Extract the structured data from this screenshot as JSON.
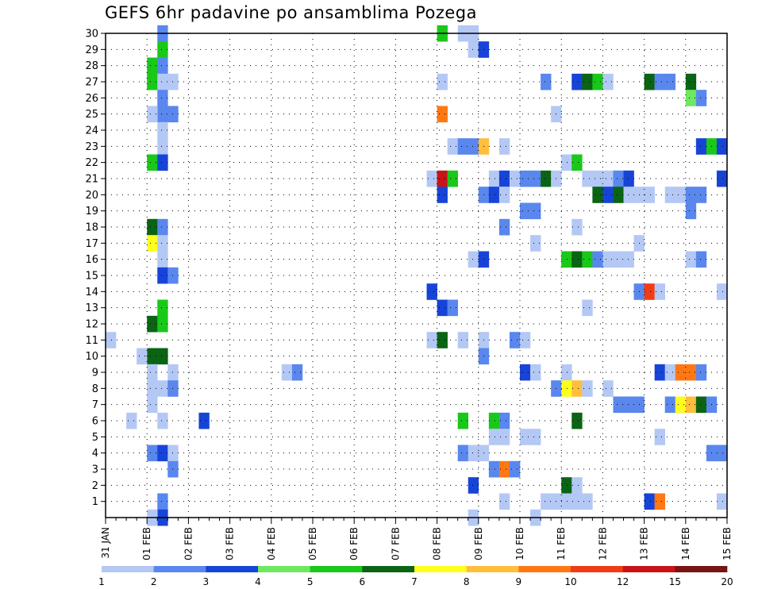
{
  "chart_data": {
    "type": "heatmap",
    "title": "GEFS 6hr padavine po ansamblima Pozega",
    "xlabel": "",
    "ylabel": "",
    "x_ticks": [
      "31 JAN",
      "01 FEB",
      "02 FEB",
      "03 FEB",
      "04 FEB",
      "05 FEB",
      "06 FEB",
      "07 FEB",
      "08 FEB",
      "09 FEB",
      "10 FEB",
      "11 FEB",
      "12 FEB",
      "13 FEB",
      "14 FEB",
      "15 FEB"
    ],
    "y_ticks": [
      1,
      2,
      3,
      4,
      5,
      6,
      7,
      8,
      9,
      10,
      11,
      12,
      13,
      14,
      15,
      16,
      17,
      18,
      19,
      20,
      21,
      22,
      23,
      24,
      25,
      26,
      27,
      28,
      29,
      30
    ],
    "x_range_days": [
      0,
      15
    ],
    "steps_per_day": 4,
    "y_range": [
      0,
      30
    ],
    "grid": true,
    "colorbar": {
      "levels": [
        "1",
        "2",
        "3",
        "4",
        "5",
        "6",
        "7",
        "8",
        "9",
        "10",
        "12",
        "15",
        "20"
      ],
      "colors": [
        "#b4c8f5",
        "#5a87ee",
        "#1744d8",
        "#6ee860",
        "#19c819",
        "#0a6414",
        "#ffff1e",
        "#ffbe3c",
        "#ff7814",
        "#f03c14",
        "#c81414",
        "#781414"
      ]
    },
    "cells": [
      [
        5,
        30,
        1
      ],
      [
        5,
        29,
        4
      ],
      [
        5,
        28,
        1
      ],
      [
        4,
        28,
        4
      ],
      [
        4,
        27,
        4
      ],
      [
        5,
        27,
        0
      ],
      [
        6,
        27,
        0
      ],
      [
        5,
        26,
        1
      ],
      [
        5,
        25,
        1
      ],
      [
        4,
        25,
        0
      ],
      [
        6,
        25,
        1
      ],
      [
        5,
        24,
        0
      ],
      [
        5,
        23,
        0
      ],
      [
        4,
        22,
        4
      ],
      [
        5,
        22,
        2
      ],
      [
        4,
        18,
        5
      ],
      [
        5,
        18,
        1
      ],
      [
        4,
        17,
        6
      ],
      [
        5,
        17,
        0
      ],
      [
        5,
        16,
        0
      ],
      [
        5,
        15,
        2
      ],
      [
        6,
        15,
        1
      ],
      [
        5,
        13,
        4
      ],
      [
        4,
        12,
        5
      ],
      [
        5,
        12,
        4
      ],
      [
        4,
        10,
        5
      ],
      [
        5,
        10,
        5
      ],
      [
        3,
        10,
        0
      ],
      [
        4,
        9,
        0
      ],
      [
        6,
        9,
        0
      ],
      [
        4,
        8,
        0
      ],
      [
        5,
        8,
        0
      ],
      [
        6,
        8,
        1
      ],
      [
        4,
        7,
        0
      ],
      [
        5,
        6,
        0
      ],
      [
        2,
        6,
        0
      ],
      [
        4,
        4,
        1
      ],
      [
        5,
        4,
        2
      ],
      [
        6,
        4,
        0
      ],
      [
        6,
        3,
        1
      ],
      [
        5,
        1,
        1
      ],
      [
        5,
        0,
        2
      ],
      [
        4,
        0,
        0
      ],
      [
        0,
        11,
        0
      ],
      [
        9,
        6,
        2
      ],
      [
        17,
        9,
        0
      ],
      [
        18,
        9,
        1
      ],
      [
        32,
        30,
        4
      ],
      [
        34,
        30,
        0
      ],
      [
        35,
        30,
        0
      ],
      [
        35,
        29,
        0
      ],
      [
        36,
        29,
        2
      ],
      [
        32,
        27,
        0
      ],
      [
        42,
        27,
        1
      ],
      [
        45,
        27,
        2
      ],
      [
        46,
        27,
        5
      ],
      [
        47,
        27,
        4
      ],
      [
        48,
        27,
        0
      ],
      [
        52,
        27,
        5
      ],
      [
        53,
        27,
        1
      ],
      [
        54,
        27,
        1
      ],
      [
        56,
        27,
        5
      ],
      [
        56,
        26,
        3
      ],
      [
        57,
        26,
        1
      ],
      [
        32,
        25,
        8
      ],
      [
        43,
        25,
        0
      ],
      [
        57,
        23,
        2
      ],
      [
        58,
        23,
        4
      ],
      [
        59,
        23,
        2
      ],
      [
        33,
        23,
        0
      ],
      [
        34,
        23,
        1
      ],
      [
        35,
        23,
        1
      ],
      [
        36,
        23,
        7
      ],
      [
        38,
        23,
        0
      ],
      [
        44,
        22,
        0
      ],
      [
        45,
        22,
        4
      ],
      [
        31,
        21,
        0
      ],
      [
        32,
        21,
        10
      ],
      [
        33,
        21,
        4
      ],
      [
        37,
        21,
        0
      ],
      [
        38,
        21,
        2
      ],
      [
        39,
        21,
        0
      ],
      [
        40,
        21,
        1
      ],
      [
        41,
        21,
        1
      ],
      [
        42,
        21,
        5
      ],
      [
        43,
        21,
        0
      ],
      [
        46,
        21,
        0
      ],
      [
        47,
        21,
        0
      ],
      [
        48,
        21,
        0
      ],
      [
        49,
        21,
        1
      ],
      [
        50,
        21,
        2
      ],
      [
        59,
        21,
        2
      ],
      [
        32,
        20,
        2
      ],
      [
        36,
        20,
        1
      ],
      [
        37,
        20,
        2
      ],
      [
        38,
        20,
        0
      ],
      [
        47,
        20,
        5
      ],
      [
        48,
        20,
        2
      ],
      [
        49,
        20,
        5
      ],
      [
        50,
        20,
        0
      ],
      [
        51,
        20,
        0
      ],
      [
        52,
        20,
        0
      ],
      [
        54,
        20,
        0
      ],
      [
        55,
        20,
        0
      ],
      [
        56,
        20,
        1
      ],
      [
        57,
        20,
        1
      ],
      [
        40,
        19,
        1
      ],
      [
        41,
        19,
        1
      ],
      [
        56,
        19,
        1
      ],
      [
        38,
        18,
        1
      ],
      [
        45,
        18,
        0
      ],
      [
        41,
        17,
        0
      ],
      [
        51,
        17,
        0
      ],
      [
        35,
        16,
        0
      ],
      [
        36,
        16,
        2
      ],
      [
        44,
        16,
        4
      ],
      [
        45,
        16,
        5
      ],
      [
        46,
        16,
        4
      ],
      [
        47,
        16,
        1
      ],
      [
        48,
        16,
        0
      ],
      [
        49,
        16,
        0
      ],
      [
        50,
        16,
        0
      ],
      [
        56,
        16,
        0
      ],
      [
        57,
        16,
        1
      ],
      [
        31,
        14,
        2
      ],
      [
        51,
        14,
        1
      ],
      [
        52,
        14,
        9
      ],
      [
        53,
        14,
        0
      ],
      [
        59,
        14,
        0
      ],
      [
        32,
        13,
        2
      ],
      [
        33,
        13,
        1
      ],
      [
        46,
        13,
        0
      ],
      [
        31,
        11,
        0
      ],
      [
        32,
        11,
        5
      ],
      [
        34,
        11,
        0
      ],
      [
        36,
        11,
        0
      ],
      [
        39,
        11,
        1
      ],
      [
        40,
        11,
        0
      ],
      [
        36,
        10,
        1
      ],
      [
        40,
        9,
        2
      ],
      [
        41,
        9,
        0
      ],
      [
        44,
        9,
        0
      ],
      [
        53,
        9,
        2
      ],
      [
        54,
        9,
        0
      ],
      [
        55,
        9,
        8
      ],
      [
        56,
        9,
        8
      ],
      [
        57,
        9,
        1
      ],
      [
        43,
        8,
        1
      ],
      [
        44,
        8,
        6
      ],
      [
        45,
        8,
        7
      ],
      [
        46,
        8,
        0
      ],
      [
        48,
        8,
        0
      ],
      [
        49,
        7,
        1
      ],
      [
        50,
        7,
        1
      ],
      [
        51,
        7,
        1
      ],
      [
        54,
        7,
        1
      ],
      [
        55,
        7,
        6
      ],
      [
        56,
        7,
        7
      ],
      [
        57,
        7,
        5
      ],
      [
        58,
        7,
        1
      ],
      [
        34,
        6,
        4
      ],
      [
        37,
        6,
        4
      ],
      [
        38,
        6,
        1
      ],
      [
        45,
        6,
        5
      ],
      [
        37,
        5,
        0
      ],
      [
        38,
        5,
        0
      ],
      [
        40,
        5,
        0
      ],
      [
        41,
        5,
        0
      ],
      [
        53,
        5,
        0
      ],
      [
        34,
        4,
        1
      ],
      [
        35,
        4,
        0
      ],
      [
        36,
        4,
        0
      ],
      [
        58,
        4,
        1
      ],
      [
        59,
        4,
        1
      ],
      [
        37,
        3,
        1
      ],
      [
        38,
        3,
        8
      ],
      [
        39,
        3,
        1
      ],
      [
        35,
        2,
        2
      ],
      [
        44,
        2,
        5
      ],
      [
        45,
        2,
        0
      ],
      [
        38,
        1,
        0
      ],
      [
        42,
        1,
        0
      ],
      [
        43,
        1,
        0
      ],
      [
        44,
        1,
        0
      ],
      [
        45,
        1,
        0
      ],
      [
        46,
        1,
        0
      ],
      [
        52,
        1,
        2
      ],
      [
        53,
        1,
        8
      ],
      [
        59,
        1,
        0
      ],
      [
        35,
        0,
        0
      ],
      [
        41,
        0,
        0
      ]
    ]
  }
}
